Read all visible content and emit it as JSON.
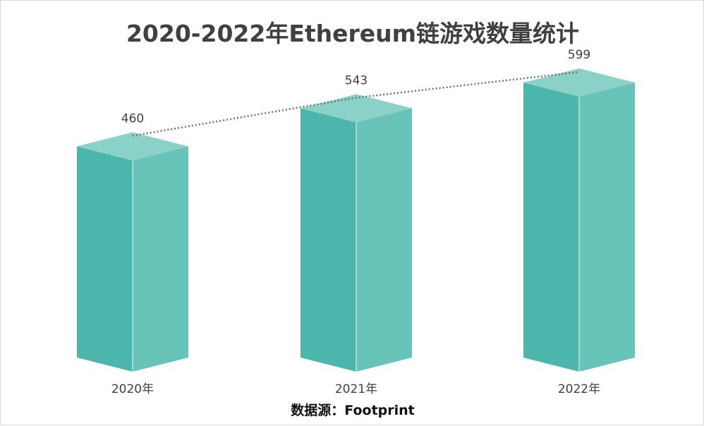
{
  "title": "2020-2022年Ethereum链游戏数量统计",
  "source": "数据源：Footprint",
  "colors": {
    "front": "#4db6ac",
    "side": "#68c3b8",
    "top": "#8ad1c8",
    "edge": "#b9e6e0",
    "trend": "#707070"
  },
  "chart_data": {
    "type": "bar",
    "title": "2020-2022年Ethereum链游戏数量统计",
    "categories": [
      "2020年",
      "2021年",
      "2022年"
    ],
    "values": [
      460,
      543,
      599
    ],
    "data_labels": [
      "460",
      "543",
      "599"
    ],
    "xlabel": "",
    "ylabel": "",
    "grid": false,
    "legend": "none",
    "trend_line": "dotted"
  }
}
